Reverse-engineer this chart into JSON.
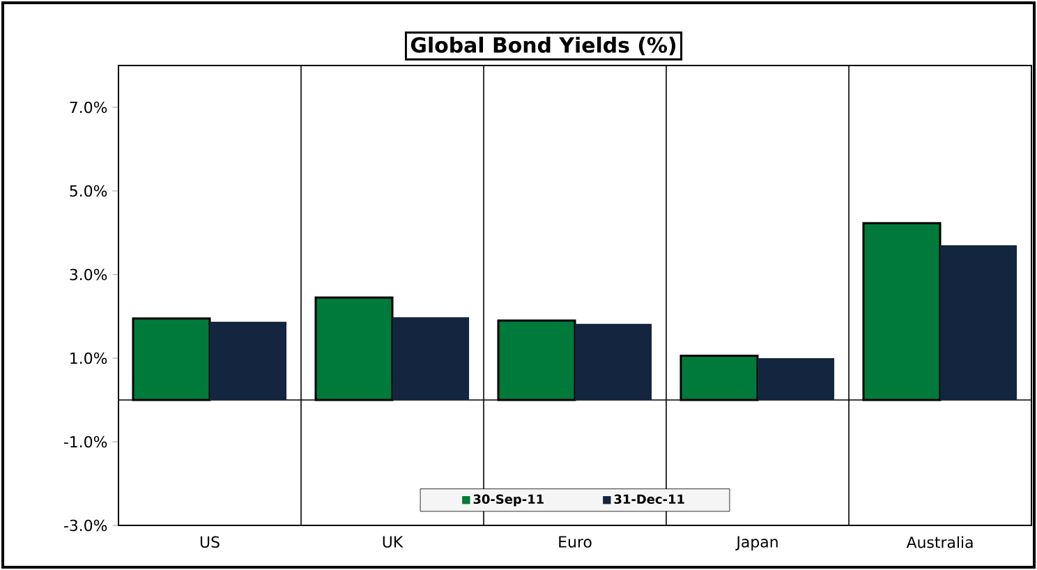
{
  "chart_data": {
    "type": "bar",
    "title": "Global Bond Yields (%)",
    "categories": [
      "US",
      "UK",
      "Euro",
      "Japan",
      "Australia"
    ],
    "series": [
      {
        "name": "30-Sep-11",
        "color": "#007a3a",
        "values": [
          1.95,
          2.45,
          1.9,
          1.06,
          4.23
        ]
      },
      {
        "name": "31-Dec-11",
        "color": "#13253f",
        "values": [
          1.87,
          1.98,
          1.82,
          1.0,
          3.7
        ]
      }
    ],
    "ylim": [
      -3,
      8
    ],
    "yticks": [
      {
        "value": -3,
        "label": "-3.0%"
      },
      {
        "value": -1,
        "label": "-1.0%"
      },
      {
        "value": 1,
        "label": "1.0%"
      },
      {
        "value": 3,
        "label": "3.0%"
      },
      {
        "value": 5,
        "label": "5.0%"
      },
      {
        "value": 7,
        "label": "7.0%"
      }
    ],
    "grid": "x",
    "legend": "bottom"
  }
}
